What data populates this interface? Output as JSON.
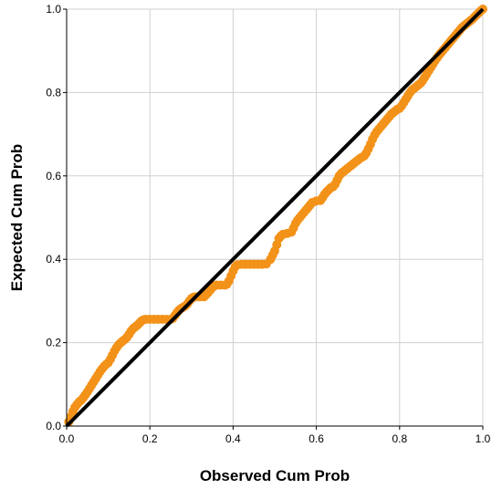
{
  "chart_data": {
    "type": "scatter",
    "title": "",
    "xlabel": "Observed Cum Prob",
    "ylabel": "Expected Cum Prob",
    "xlim": [
      0.0,
      1.0
    ],
    "ylim": [
      0.0,
      1.0
    ],
    "xticks": [
      "0.0",
      "0.2",
      "0.4",
      "0.6",
      "0.8",
      "1.0"
    ],
    "yticks": [
      "0.0",
      "0.2",
      "0.4",
      "0.6",
      "0.8",
      "1.0"
    ],
    "grid": true,
    "legend": "none",
    "point_color": "#f39219",
    "reference_line": {
      "color": "#000000",
      "from": [
        0,
        0
      ],
      "to": [
        1,
        1
      ]
    },
    "points": [
      [
        0.005,
        0.01
      ],
      [
        0.01,
        0.022
      ],
      [
        0.015,
        0.035
      ],
      [
        0.02,
        0.045
      ],
      [
        0.025,
        0.052
      ],
      [
        0.03,
        0.058
      ],
      [
        0.035,
        0.062
      ],
      [
        0.04,
        0.068
      ],
      [
        0.045,
        0.075
      ],
      [
        0.05,
        0.082
      ],
      [
        0.055,
        0.09
      ],
      [
        0.06,
        0.098
      ],
      [
        0.065,
        0.106
      ],
      [
        0.07,
        0.114
      ],
      [
        0.075,
        0.122
      ],
      [
        0.08,
        0.13
      ],
      [
        0.085,
        0.137
      ],
      [
        0.09,
        0.143
      ],
      [
        0.095,
        0.148
      ],
      [
        0.1,
        0.152
      ],
      [
        0.105,
        0.16
      ],
      [
        0.11,
        0.17
      ],
      [
        0.115,
        0.18
      ],
      [
        0.12,
        0.188
      ],
      [
        0.125,
        0.195
      ],
      [
        0.13,
        0.2
      ],
      [
        0.135,
        0.204
      ],
      [
        0.14,
        0.208
      ],
      [
        0.145,
        0.213
      ],
      [
        0.15,
        0.22
      ],
      [
        0.155,
        0.228
      ],
      [
        0.16,
        0.234
      ],
      [
        0.165,
        0.238
      ],
      [
        0.17,
        0.242
      ],
      [
        0.175,
        0.247
      ],
      [
        0.18,
        0.252
      ],
      [
        0.185,
        0.255
      ],
      [
        0.19,
        0.256
      ],
      [
        0.2,
        0.256
      ],
      [
        0.21,
        0.256
      ],
      [
        0.22,
        0.256
      ],
      [
        0.23,
        0.256
      ],
      [
        0.24,
        0.256
      ],
      [
        0.25,
        0.256
      ],
      [
        0.255,
        0.258
      ],
      [
        0.26,
        0.265
      ],
      [
        0.265,
        0.272
      ],
      [
        0.27,
        0.278
      ],
      [
        0.275,
        0.282
      ],
      [
        0.28,
        0.285
      ],
      [
        0.285,
        0.288
      ],
      [
        0.29,
        0.293
      ],
      [
        0.295,
        0.3
      ],
      [
        0.3,
        0.306
      ],
      [
        0.305,
        0.309
      ],
      [
        0.31,
        0.31
      ],
      [
        0.32,
        0.31
      ],
      [
        0.33,
        0.31
      ],
      [
        0.335,
        0.315
      ],
      [
        0.34,
        0.32
      ],
      [
        0.345,
        0.326
      ],
      [
        0.35,
        0.332
      ],
      [
        0.355,
        0.336
      ],
      [
        0.36,
        0.338
      ],
      [
        0.37,
        0.338
      ],
      [
        0.38,
        0.338
      ],
      [
        0.385,
        0.34
      ],
      [
        0.39,
        0.348
      ],
      [
        0.395,
        0.36
      ],
      [
        0.4,
        0.372
      ],
      [
        0.405,
        0.382
      ],
      [
        0.41,
        0.387
      ],
      [
        0.42,
        0.388
      ],
      [
        0.43,
        0.388
      ],
      [
        0.44,
        0.388
      ],
      [
        0.45,
        0.388
      ],
      [
        0.46,
        0.388
      ],
      [
        0.47,
        0.388
      ],
      [
        0.48,
        0.389
      ],
      [
        0.49,
        0.4
      ],
      [
        0.495,
        0.41
      ],
      [
        0.5,
        0.42
      ],
      [
        0.505,
        0.435
      ],
      [
        0.51,
        0.45
      ],
      [
        0.515,
        0.456
      ],
      [
        0.52,
        0.46
      ],
      [
        0.53,
        0.462
      ],
      [
        0.54,
        0.465
      ],
      [
        0.545,
        0.475
      ],
      [
        0.55,
        0.486
      ],
      [
        0.555,
        0.494
      ],
      [
        0.56,
        0.5
      ],
      [
        0.565,
        0.506
      ],
      [
        0.57,
        0.512
      ],
      [
        0.575,
        0.518
      ],
      [
        0.58,
        0.524
      ],
      [
        0.585,
        0.53
      ],
      [
        0.59,
        0.536
      ],
      [
        0.6,
        0.54
      ],
      [
        0.61,
        0.541
      ],
      [
        0.615,
        0.548
      ],
      [
        0.62,
        0.556
      ],
      [
        0.625,
        0.562
      ],
      [
        0.63,
        0.567
      ],
      [
        0.635,
        0.572
      ],
      [
        0.64,
        0.574
      ],
      [
        0.645,
        0.58
      ],
      [
        0.65,
        0.59
      ],
      [
        0.655,
        0.6
      ],
      [
        0.66,
        0.606
      ],
      [
        0.665,
        0.61
      ],
      [
        0.67,
        0.614
      ],
      [
        0.675,
        0.618
      ],
      [
        0.68,
        0.622
      ],
      [
        0.685,
        0.626
      ],
      [
        0.69,
        0.63
      ],
      [
        0.695,
        0.634
      ],
      [
        0.7,
        0.638
      ],
      [
        0.705,
        0.642
      ],
      [
        0.71,
        0.645
      ],
      [
        0.715,
        0.648
      ],
      [
        0.72,
        0.655
      ],
      [
        0.725,
        0.665
      ],
      [
        0.73,
        0.676
      ],
      [
        0.735,
        0.688
      ],
      [
        0.74,
        0.698
      ],
      [
        0.745,
        0.706
      ],
      [
        0.75,
        0.712
      ],
      [
        0.755,
        0.718
      ],
      [
        0.76,
        0.724
      ],
      [
        0.765,
        0.73
      ],
      [
        0.77,
        0.736
      ],
      [
        0.775,
        0.742
      ],
      [
        0.78,
        0.748
      ],
      [
        0.785,
        0.752
      ],
      [
        0.79,
        0.756
      ],
      [
        0.795,
        0.76
      ],
      [
        0.8,
        0.762
      ],
      [
        0.805,
        0.768
      ],
      [
        0.81,
        0.776
      ],
      [
        0.815,
        0.784
      ],
      [
        0.82,
        0.792
      ],
      [
        0.825,
        0.8
      ],
      [
        0.83,
        0.806
      ],
      [
        0.835,
        0.81
      ],
      [
        0.84,
        0.814
      ],
      [
        0.845,
        0.818
      ],
      [
        0.85,
        0.822
      ],
      [
        0.855,
        0.828
      ],
      [
        0.86,
        0.836
      ],
      [
        0.865,
        0.844
      ],
      [
        0.87,
        0.852
      ],
      [
        0.875,
        0.86
      ],
      [
        0.88,
        0.868
      ],
      [
        0.885,
        0.876
      ],
      [
        0.89,
        0.883
      ],
      [
        0.895,
        0.89
      ],
      [
        0.9,
        0.896
      ],
      [
        0.905,
        0.902
      ],
      [
        0.91,
        0.908
      ],
      [
        0.915,
        0.914
      ],
      [
        0.92,
        0.92
      ],
      [
        0.925,
        0.926
      ],
      [
        0.93,
        0.932
      ],
      [
        0.935,
        0.938
      ],
      [
        0.94,
        0.944
      ],
      [
        0.945,
        0.95
      ],
      [
        0.95,
        0.956
      ],
      [
        0.955,
        0.96
      ],
      [
        0.96,
        0.964
      ],
      [
        0.965,
        0.968
      ],
      [
        0.97,
        0.972
      ],
      [
        0.975,
        0.976
      ],
      [
        0.98,
        0.981
      ],
      [
        0.985,
        0.986
      ],
      [
        0.99,
        0.991
      ],
      [
        0.995,
        0.996
      ],
      [
        1.0,
        1.0
      ]
    ]
  }
}
